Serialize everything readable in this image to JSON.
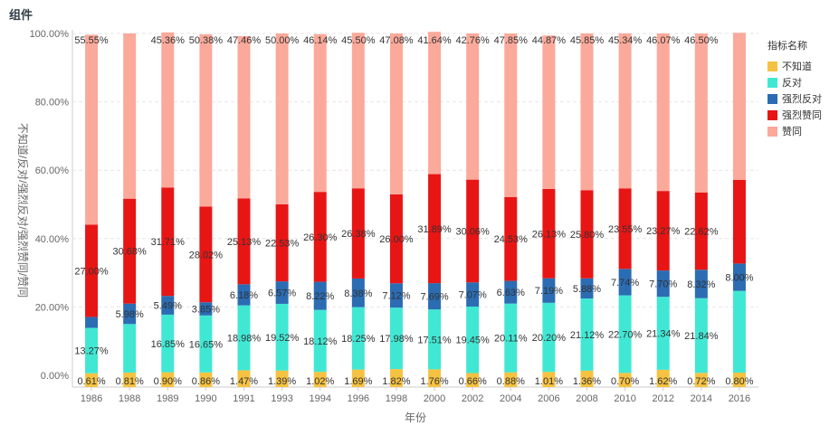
{
  "header": {
    "title": "组件"
  },
  "legend": {
    "title": "指标名称"
  },
  "chart_data": {
    "type": "bar",
    "stacked": true,
    "xlabel": "年份",
    "ylabel": "不知道/反对/强烈反对/强烈赞同/赞同",
    "ylim": [
      0,
      100
    ],
    "yticks": [
      "0.00%",
      "20.00%",
      "40.00%",
      "60.00%",
      "80.00%",
      "100.00%"
    ],
    "grid": true,
    "legend_position": "right",
    "categories": [
      "1986",
      "1988",
      "1989",
      "1990",
      "1991",
      "1993",
      "1994",
      "1996",
      "1998",
      "2000",
      "2002",
      "2004",
      "2006",
      "2008",
      "2010",
      "2012",
      "2014",
      "2016"
    ],
    "series": [
      {
        "name": "不知道",
        "color": "#f5c242",
        "values": [
          0.61,
          0.81,
          0.9,
          0.86,
          1.47,
          1.39,
          1.02,
          1.69,
          1.82,
          1.76,
          0.66,
          0.88,
          1.01,
          1.36,
          0.7,
          1.62,
          0.72,
          0.8
        ],
        "labels": [
          "0.61%",
          "0.81%",
          "0.90%",
          "0.86%",
          "1.47%",
          "1.39%",
          "1.02%",
          "1.69%",
          "1.82%",
          "1.76%",
          "0.66%",
          "0.88%",
          "1.01%",
          "1.36%",
          "0.70%",
          "1.62%",
          "0.72%",
          "0.80%"
        ]
      },
      {
        "name": "反对",
        "color": "#40e8d4",
        "values": [
          13.27,
          14.2,
          16.85,
          16.65,
          18.98,
          19.52,
          18.12,
          18.25,
          17.98,
          17.51,
          19.45,
          20.11,
          20.2,
          21.12,
          22.7,
          21.34,
          21.84,
          23.9
        ],
        "labels": [
          "13.27%",
          "",
          "16.85%",
          "16.65%",
          "18.98%",
          "19.52%",
          "18.12%",
          "18.25%",
          "17.98%",
          "17.51%",
          "19.45%",
          "20.11%",
          "20.20%",
          "21.12%",
          "22.70%",
          "21.34%",
          "21.84%",
          ""
        ]
      },
      {
        "name": "强烈反对",
        "color": "#2b6cb3",
        "values": [
          3.2,
          5.98,
          5.49,
          3.85,
          6.18,
          6.57,
          8.22,
          8.38,
          7.12,
          7.69,
          7.07,
          6.63,
          7.19,
          5.88,
          7.74,
          7.7,
          8.32,
          8.0
        ],
        "labels": [
          "",
          "5.98%",
          "5.49%",
          "3.85%",
          "6.18%",
          "6.57%",
          "8.22%",
          "8.38%",
          "7.12%",
          "7.69%",
          "7.07%",
          "6.63%",
          "7.19%",
          "5.88%",
          "7.74%",
          "7.70%",
          "8.32%",
          "8.00%"
        ]
      },
      {
        "name": "强烈赞同",
        "color": "#e81515",
        "values": [
          27.0,
          30.68,
          31.71,
          28.02,
          25.13,
          22.53,
          26.3,
          26.38,
          26.0,
          31.89,
          30.06,
          24.53,
          26.13,
          25.8,
          23.55,
          23.27,
          22.62,
          24.5
        ],
        "labels": [
          "27.00%",
          "30.68%",
          "31.71%",
          "28.02%",
          "25.13%",
          "22.53%",
          "26.30%",
          "26.38%",
          "26.00%",
          "31.89%",
          "30.06%",
          "24.53%",
          "26.13%",
          "25.80%",
          "23.55%",
          "23.27%",
          "22.62%",
          ""
        ]
      },
      {
        "name": "赞同",
        "color": "#fba99a",
        "values": [
          55.55,
          48.35,
          45.36,
          50.38,
          47.46,
          50.0,
          46.14,
          45.5,
          47.08,
          41.64,
          42.76,
          47.85,
          44.87,
          45.85,
          45.34,
          46.07,
          46.5,
          43.0
        ],
        "labels": [
          "55.55%",
          "",
          "45.36%",
          "50.38%",
          "47.46%",
          "50.00%",
          "46.14%",
          "45.50%",
          "47.08%",
          "41.64%",
          "42.76%",
          "47.85%",
          "44.87%",
          "45.85%",
          "45.34%",
          "46.07%",
          "46.50%",
          ""
        ]
      }
    ]
  }
}
